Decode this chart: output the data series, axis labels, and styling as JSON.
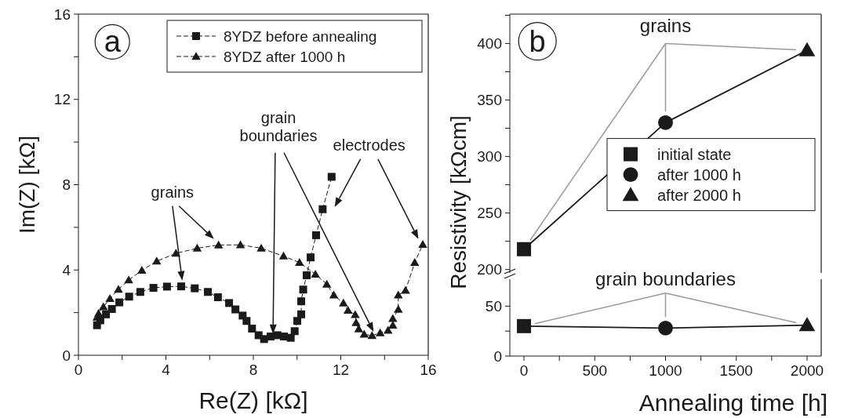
{
  "chart_data": [
    {
      "type": "line",
      "xlabel": "Re(Z) [kΩ]",
      "ylabel": "Im(Z) [kΩ]",
      "xlim": [
        0,
        16
      ],
      "ylim": [
        0,
        16
      ],
      "xticks": [
        0,
        {
          "value": 2,
          "label": null
        },
        4,
        {
          "value": 6,
          "label": null
        },
        8,
        {
          "value": 10,
          "label": null
        },
        12,
        {
          "value": 14,
          "label": null
        },
        16
      ],
      "yticks": [
        0,
        {
          "value": 2,
          "label": null
        },
        4,
        {
          "value": 6,
          "label": null
        },
        8,
        {
          "value": 10,
          "label": null
        },
        12,
        {
          "value": 14,
          "label": null
        },
        16
      ],
      "legend": "top right",
      "line_style": "dashed",
      "annotations": [
        "a",
        "grains",
        "grain boundaries",
        "electrodes"
      ],
      "series": [
        {
          "name": "8YDZ before annealing",
          "color": "#1a1a1a",
          "marker": "square",
          "x": [
            0.85,
            1.0,
            1.26,
            1.53,
            1.87,
            2.32,
            2.83,
            3.43,
            4.05,
            4.7,
            5.32,
            5.92,
            6.38,
            6.89,
            7.18,
            7.51,
            7.69,
            7.94,
            8.24,
            8.49,
            8.79,
            9.1,
            9.4,
            9.71,
            9.89,
            10.01,
            10.19,
            10.19,
            10.28,
            10.44,
            10.62,
            10.87,
            11.17,
            11.58
          ],
          "values": [
            1.41,
            1.64,
            1.92,
            2.17,
            2.48,
            2.75,
            2.97,
            3.16,
            3.22,
            3.23,
            3.14,
            2.97,
            2.72,
            2.45,
            2.15,
            1.86,
            1.61,
            1.25,
            0.94,
            0.76,
            0.88,
            0.94,
            0.88,
            0.82,
            1.13,
            1.61,
            1.92,
            2.53,
            3.08,
            3.75,
            4.59,
            5.63,
            6.85,
            8.37
          ]
        },
        {
          "name": "8YDZ after 1000 h",
          "color": "#1a1a1a",
          "marker": "triangle",
          "x": [
            0.85,
            0.92,
            1.14,
            1.44,
            1.83,
            2.3,
            2.9,
            3.58,
            4.46,
            5.43,
            6.41,
            7.41,
            8.36,
            9.38,
            10.11,
            10.84,
            11.36,
            11.68,
            12.12,
            12.33,
            12.66,
            12.7,
            12.82,
            13.07,
            13.43,
            13.8,
            14.16,
            14.38,
            14.38,
            14.63,
            14.63,
            14.96,
            15.38,
            15.75
          ],
          "values": [
            1.78,
            1.96,
            2.27,
            2.66,
            3.09,
            3.53,
            3.98,
            4.41,
            4.78,
            5.02,
            5.17,
            5.18,
            5.02,
            4.65,
            4.35,
            3.8,
            3.33,
            2.82,
            2.45,
            2.11,
            1.9,
            1.53,
            1.23,
            0.98,
            0.92,
            1.05,
            1.17,
            1.41,
            1.72,
            2.15,
            2.82,
            3.04,
            4.35,
            5.2
          ]
        }
      ]
    },
    {
      "type": "line",
      "ylabel": "Resistivity [kΩcm]",
      "xlim": [
        -100,
        2100
      ],
      "ylim": [
        197,
        426
      ],
      "yticks": [
        200,
        {
          "value": 225,
          "label": null
        },
        250,
        {
          "value": 275,
          "label": null
        },
        300,
        {
          "value": 325,
          "label": null
        },
        350,
        {
          "value": 375,
          "label": null
        },
        400,
        {
          "value": 425,
          "label": null
        }
      ],
      "tick_labels": "y",
      "legend": "right",
      "line_style": "solid",
      "annotations": [
        "b",
        "grains"
      ],
      "series": [
        {
          "color": "#1a1a1a",
          "marker": "none",
          "x": [
            0,
            1000,
            2000
          ],
          "values": [
            218,
            330,
            394
          ]
        },
        {
          "type": "scatter",
          "name": "initial state",
          "color": "#1a1a1a",
          "marker": "square",
          "x": [
            0
          ],
          "values": [
            218
          ]
        },
        {
          "type": "scatter",
          "name": "after 1000 h",
          "color": "#1a1a1a",
          "marker": "circle",
          "x": [
            1000
          ],
          "values": [
            330
          ]
        },
        {
          "type": "scatter",
          "name": "after 2000 h",
          "color": "#1a1a1a",
          "marker": "triangle",
          "x": [
            2000
          ],
          "values": [
            394
          ]
        }
      ]
    },
    {
      "type": "line",
      "xlabel": "Annealing time [h]",
      "xlim": [
        -100,
        2100
      ],
      "xticks": [
        0,
        {
          "value": 250,
          "label": null
        },
        500,
        {
          "value": 750,
          "label": null
        },
        1000,
        {
          "value": 1250,
          "label": null
        },
        1500,
        {
          "value": 1750,
          "label": null
        },
        2000
      ],
      "ylim": [
        0,
        77
      ],
      "yticks": [
        0,
        {
          "value": 25,
          "label": null
        },
        50
      ],
      "line_style": "solid",
      "annotations": [
        "grain boundaries"
      ],
      "series": [
        {
          "color": "#1a1a1a",
          "marker": "none",
          "x": [
            0,
            1000,
            2000
          ],
          "values": [
            30,
            28,
            31
          ]
        },
        {
          "type": "scatter",
          "color": "#1a1a1a",
          "marker": "square",
          "x": [
            0
          ],
          "values": [
            30
          ]
        },
        {
          "type": "scatter",
          "color": "#1a1a1a",
          "marker": "circle",
          "x": [
            1000
          ],
          "values": [
            28
          ]
        },
        {
          "type": "scatter",
          "color": "#1a1a1a",
          "marker": "triangle",
          "x": [
            2000
          ],
          "values": [
            31
          ]
        }
      ]
    }
  ]
}
